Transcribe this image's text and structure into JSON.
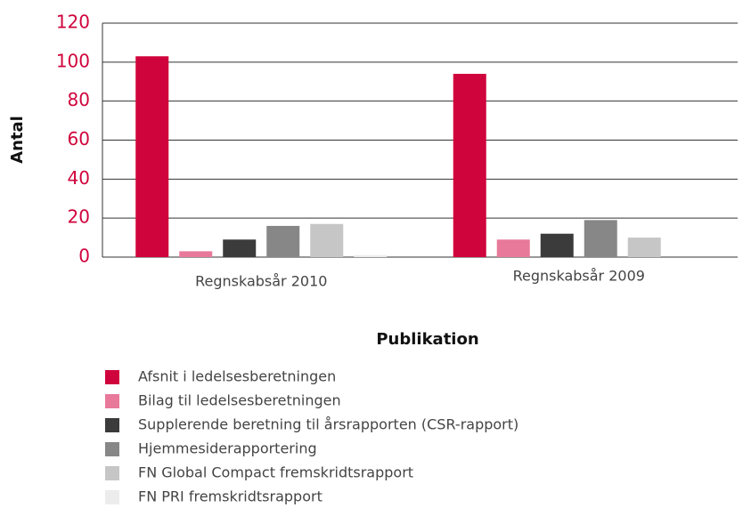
{
  "chart_data": {
    "type": "bar",
    "categories": [
      "Regnskabsår 2010",
      "Regnskabsår 2009"
    ],
    "series": [
      {
        "name": "Afsnit i ledelsesberetningen",
        "color": "#d0043c",
        "values": [
          103,
          94
        ]
      },
      {
        "name": "Bilag til ledelsesberetningen",
        "color": "#e8799a",
        "values": [
          3,
          9
        ]
      },
      {
        "name": "Supplerende beretning til årsrapporten (CSR-rapport)",
        "color": "#3b3b3b",
        "values": [
          9,
          12
        ]
      },
      {
        "name": "Hjemmesiderapportering",
        "color": "#878787",
        "values": [
          16,
          19
        ]
      },
      {
        "name": "FN Global Compact fremskridtsrapport",
        "color": "#c6c6c6",
        "values": [
          17,
          10
        ]
      },
      {
        "name": "FN PRI fremskridtsrapport",
        "color": "#ececec",
        "values": [
          1,
          0
        ]
      }
    ],
    "xlabel": "Publikation",
    "ylabel": "Antal",
    "ylim": [
      0,
      120
    ],
    "yticks": [
      0,
      20,
      40,
      60,
      80,
      100,
      120
    ],
    "grid": true,
    "tick_color": "#d0043c"
  }
}
